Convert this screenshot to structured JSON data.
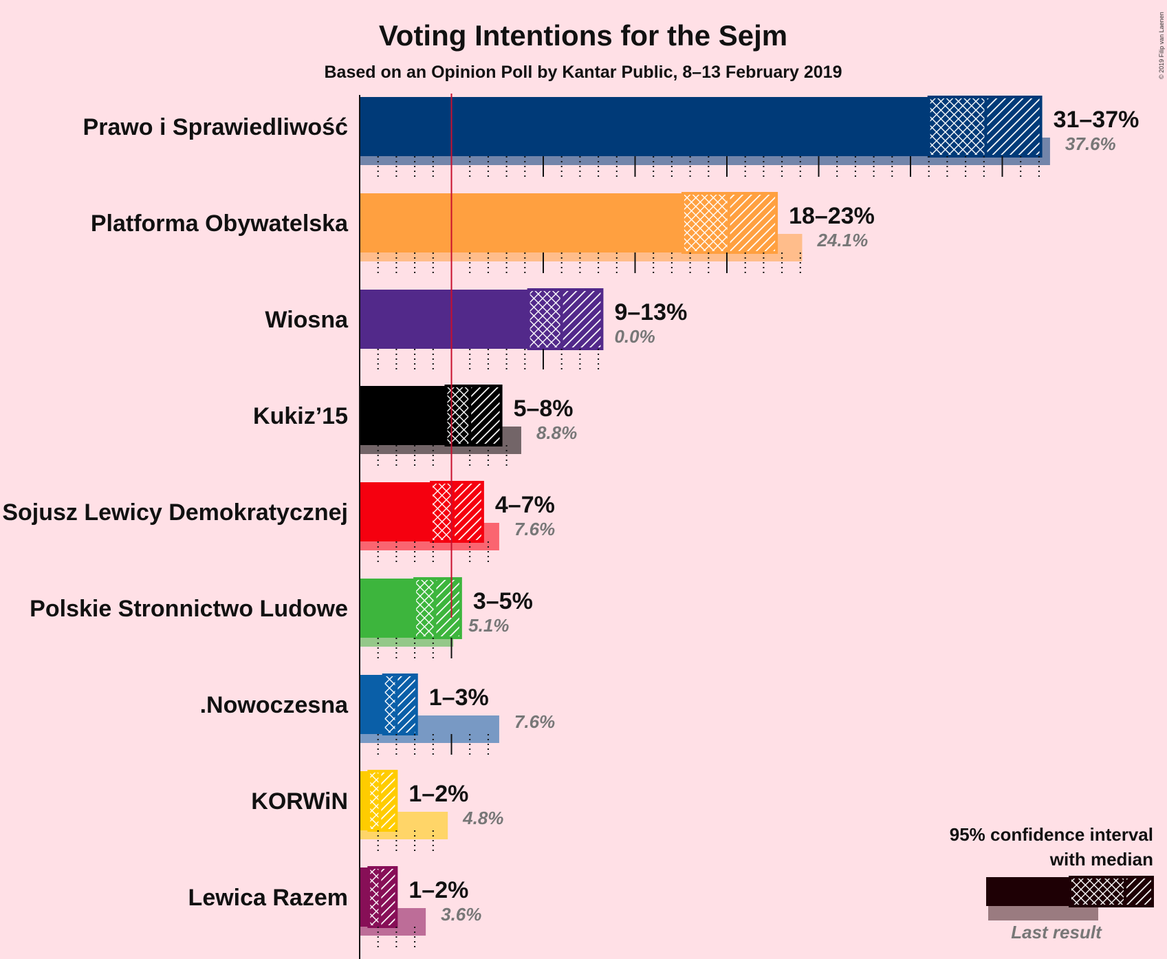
{
  "chart_data": {
    "type": "bar",
    "title": "Voting Intentions for the Sejm",
    "subtitle": "Based on an Opinion Poll by Kantar Public, 8–13 February 2019",
    "copyright": "© 2019 Filip van Laenen",
    "threshold": 5,
    "xlim": [
      0,
      40
    ],
    "parties": [
      {
        "name": "Prawo i Sprawiedliwość",
        "color": "#003A78",
        "low": 31,
        "median": 34.1,
        "high": 37.1,
        "label": "31–37%",
        "last": 37.6,
        "last_label": "37.6%"
      },
      {
        "name": "Platforma Obywatelska",
        "color": "#FFA040",
        "low": 17.6,
        "median": 20.1,
        "high": 22.7,
        "label": "18–23%",
        "last": 24.1,
        "last_label": "24.1%"
      },
      {
        "name": "Wiosna",
        "color": "#52298A",
        "low": 9.2,
        "median": 11,
        "high": 13.2,
        "label": "9–13%",
        "last": 0.0,
        "last_label": "0.0%"
      },
      {
        "name": "Kukiz’15",
        "color": "#000000",
        "low": 4.7,
        "median": 6,
        "high": 7.7,
        "label": "5–8%",
        "last": 8.8,
        "last_label": "8.8%"
      },
      {
        "name": "Sojusz Lewicy Demokratycznej",
        "color": "#F5000F",
        "low": 3.9,
        "median": 5.1,
        "high": 6.7,
        "label": "4–7%",
        "last": 7.6,
        "last_label": "7.6%"
      },
      {
        "name": "Polskie Stronnictwo Ludowe",
        "color": "#3DB53D",
        "low": 3,
        "median": 4.1,
        "high": 5.5,
        "label": "3–5%",
        "last": 5.1,
        "last_label": "5.1%"
      },
      {
        "name": ".Nowoczesna",
        "color": "#0A5FA8",
        "low": 1.3,
        "median": 2,
        "high": 3.1,
        "label": "1–3%",
        "last": 7.6,
        "last_label": "7.6%"
      },
      {
        "name": "KORWiN",
        "color": "#FFCC00",
        "low": 0.5,
        "median": 1.1,
        "high": 2,
        "label": "1–2%",
        "last": 4.8,
        "last_label": "4.8%"
      },
      {
        "name": "Lewica Razem",
        "color": "#870F57",
        "low": 0.5,
        "median": 1.1,
        "high": 2,
        "label": "1–2%",
        "last": 3.6,
        "last_label": "3.6%"
      }
    ],
    "legend": {
      "title_line1": "95% confidence interval",
      "title_line2": "with median",
      "last_result": "Last result"
    }
  }
}
